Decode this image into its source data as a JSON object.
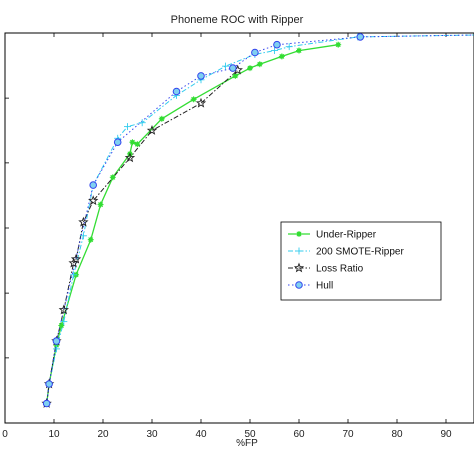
{
  "chart_data": {
    "type": "line",
    "title": "Phoneme ROC with Ripper",
    "xlabel": "%FP",
    "ylabel": "",
    "xlim": [
      0,
      100
    ],
    "x_ticks": [
      0,
      10,
      20,
      30,
      40,
      50,
      60,
      70,
      80,
      90
    ],
    "ylim": [
      0,
      100
    ],
    "y_ticks": [
      0,
      16.7,
      33.3,
      50,
      66.7,
      83.3,
      100
    ],
    "grid": false,
    "legend_position": "center-right",
    "series": [
      {
        "name": "Under-Ripper",
        "color": "#33dd33",
        "marker": "asterisk",
        "line": "solid",
        "x": [
          8.5,
          9.0,
          10.5,
          11.5,
          14.5,
          17.5,
          19.5,
          22.0,
          25.5,
          26.0,
          27.0,
          32.0,
          38.5,
          47.0,
          50.0,
          52.0,
          56.5,
          60.0,
          68.0
        ],
        "y": [
          5.0,
          10.0,
          20.0,
          25.0,
          38.0,
          47.0,
          56.0,
          63.0,
          69.0,
          72.0,
          71.5,
          78.0,
          83.0,
          89.0,
          91.0,
          92.0,
          94.0,
          95.5,
          97.0
        ]
      },
      {
        "name": "200 SMOTE-Ripper",
        "color": "#33ccee",
        "marker": "plus",
        "line": "dashdot",
        "x": [
          8.5,
          9.0,
          10.5,
          12.0,
          14.0,
          16.0,
          18.0,
          23.0,
          25.0,
          28.0,
          35.0,
          40.0,
          45.0,
          51.0,
          55.0,
          58.0,
          72.0,
          97.0
        ],
        "y": [
          5.0,
          10.0,
          19.0,
          26.0,
          38.0,
          48.0,
          61.0,
          73.0,
          76.0,
          77.0,
          84.0,
          88.0,
          91.5,
          94.5,
          95.5,
          96.5,
          99.0,
          99.5
        ]
      },
      {
        "name": "Loss Ratio",
        "color": "#222222",
        "marker": "star",
        "line": "dashdot",
        "x": [
          8.5,
          9.0,
          10.5,
          12.0,
          14.0,
          14.5,
          16.0,
          18.0,
          25.5,
          30.0,
          40.0,
          47.5
        ],
        "y": [
          5.0,
          10.0,
          21.0,
          29.0,
          41.0,
          42.0,
          51.5,
          57.0,
          68.0,
          75.0,
          82.0,
          90.5
        ]
      },
      {
        "name": "Hull",
        "color": "#3344ee",
        "marker": "circle",
        "line": "dotted",
        "x": [
          8.5,
          9.0,
          10.5,
          18.0,
          23.0,
          35.0,
          40.0,
          46.5,
          51.0,
          55.5,
          72.5,
          97.0
        ],
        "y": [
          5.0,
          10.0,
          21.0,
          61.0,
          72.0,
          85.0,
          89.0,
          91.0,
          95.0,
          97.0,
          99.0,
          99.5
        ]
      }
    ]
  }
}
